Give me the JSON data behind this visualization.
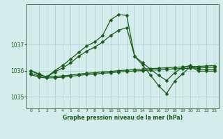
{
  "title": "Graphe pression niveau de la mer (hPa)",
  "bg_color": "#d4ecec",
  "grid_color": "#aacaca",
  "line_color": "#1a5c1a",
  "spine_color": "#507050",
  "xlim": [
    -0.5,
    23.5
  ],
  "ylim": [
    1034.55,
    1038.55
  ],
  "yticks": [
    1035,
    1036,
    1037
  ],
  "xticks": [
    0,
    1,
    2,
    3,
    4,
    5,
    6,
    7,
    8,
    9,
    10,
    11,
    12,
    13,
    14,
    15,
    16,
    17,
    18,
    19,
    20,
    21,
    22,
    23
  ],
  "series_flat1_x": [
    0,
    1,
    2,
    3,
    4,
    5,
    6,
    7,
    8,
    9,
    10,
    11,
    12,
    13,
    14,
    15,
    16,
    17,
    18,
    19,
    20,
    21,
    22,
    23
  ],
  "series_flat1_y": [
    1035.85,
    1035.75,
    1035.72,
    1035.73,
    1035.75,
    1035.78,
    1035.82,
    1035.85,
    1035.87,
    1035.9,
    1035.92,
    1035.95,
    1035.97,
    1035.99,
    1036.0,
    1036.02,
    1036.03,
    1036.05,
    1036.07,
    1036.08,
    1036.1,
    1036.1,
    1036.12,
    1036.13
  ],
  "series_flat2_x": [
    0,
    1,
    2,
    3,
    4,
    5,
    6,
    7,
    8,
    9,
    10,
    11,
    12,
    13,
    14,
    15,
    16,
    17,
    18,
    19,
    20,
    21,
    22,
    23
  ],
  "series_flat2_y": [
    1035.9,
    1035.8,
    1035.77,
    1035.78,
    1035.8,
    1035.83,
    1035.87,
    1035.9,
    1035.92,
    1035.95,
    1035.97,
    1036.0,
    1036.02,
    1036.04,
    1036.06,
    1036.08,
    1036.09,
    1036.11,
    1036.13,
    1036.14,
    1036.16,
    1036.16,
    1036.18,
    1036.19
  ],
  "series_rising_x": [
    0,
    1,
    2,
    3,
    4,
    5,
    6,
    7,
    8,
    9,
    10,
    11,
    12,
    13,
    14,
    15,
    16,
    17,
    18,
    19,
    20,
    21,
    22,
    23
  ],
  "series_rising_y": [
    1036.0,
    1035.85,
    1035.75,
    1035.95,
    1036.1,
    1036.3,
    1036.55,
    1036.75,
    1036.9,
    1037.1,
    1037.35,
    1037.55,
    1037.65,
    1036.55,
    1036.3,
    1036.05,
    1035.82,
    1035.62,
    1035.92,
    1036.12,
    1036.2,
    1036.05,
    1036.05,
    1036.05
  ],
  "series_volatile_x": [
    0,
    1,
    2,
    3,
    4,
    5,
    6,
    7,
    8,
    9,
    10,
    11,
    12,
    13,
    14,
    15,
    16,
    17,
    18,
    19,
    20,
    21,
    22,
    23
  ],
  "series_volatile_y": [
    1036.0,
    1035.88,
    1035.76,
    1036.0,
    1036.2,
    1036.45,
    1036.7,
    1036.95,
    1037.1,
    1037.35,
    1037.95,
    1038.15,
    1038.12,
    1036.55,
    1036.22,
    1035.82,
    1035.42,
    1035.12,
    1035.6,
    1035.88,
    1036.15,
    1035.98,
    1035.98,
    1035.98
  ],
  "marker": "D",
  "marker_size": 2.5,
  "lw": 0.9
}
